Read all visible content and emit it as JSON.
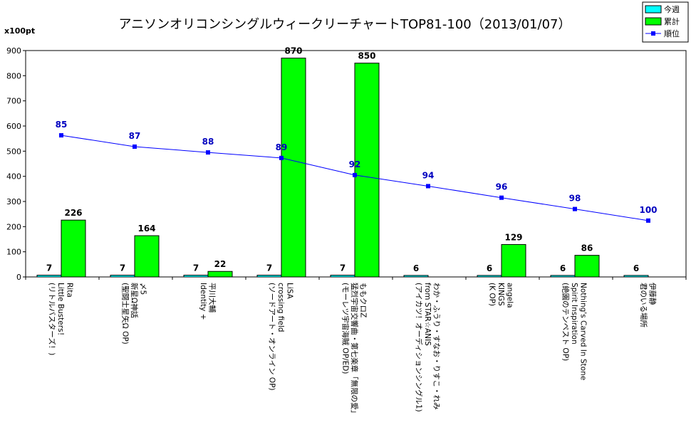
{
  "chart_data": {
    "type": "bar",
    "title": "アニソンオリコンシングルウィークリーチャートTOP81-100（2013/01/07）",
    "ylabel": "x100pt",
    "ylim": [
      0,
      900
    ],
    "yticks": [
      0,
      100,
      200,
      300,
      400,
      500,
      600,
      700,
      800,
      900
    ],
    "grid": false,
    "legend_position": "top-right",
    "categories": [
      [
        "Rita",
        "Little Busters！",
        "(リトルバスターズ！)"
      ],
      [
        "〆5",
        "新星Ω神話",
        "(聖闘士星矢Ω OP)"
      ],
      [
        "平川大輔",
        "Identity +"
      ],
      [
        "LiSA",
        "crossing field",
        "(ソードアート・オンライン OP)"
      ],
      [
        "ももクロZ",
        "猛烈宇宙交響曲・第七楽章「無限の愛」",
        "(モーレツ宇宙海賊 OP/ED)"
      ],
      [
        "わか・ふうり・すなお・りすこ・れみ",
        "from STAR☆ANIS",
        "(アイカツ！オーディションシングル1)"
      ],
      [
        "angela",
        "KINGS",
        "(K OP)"
      ],
      [
        "Nothing's Carved In Stone",
        "Spirit Inspiration",
        "(絶園のテンペスト OP)"
      ],
      [
        "伊藤静",
        "君のいる場所"
      ]
    ],
    "series": [
      {
        "name": "今週",
        "kind": "bar",
        "color": "#00ffff",
        "values": [
          7,
          7,
          7,
          7,
          7,
          6,
          6,
          6,
          6
        ]
      },
      {
        "name": "累計",
        "kind": "bar",
        "color": "#00ff00",
        "values": [
          226,
          164,
          22,
          870,
          850,
          null,
          129,
          86,
          null
        ]
      },
      {
        "name": "順位",
        "kind": "line",
        "color": "#0000ff",
        "values": [
          85,
          87,
          88,
          89,
          92,
          94,
          96,
          98,
          100
        ],
        "plot_values": [
          563,
          518,
          495,
          473,
          405,
          361,
          315,
          270,
          224
        ]
      }
    ]
  }
}
